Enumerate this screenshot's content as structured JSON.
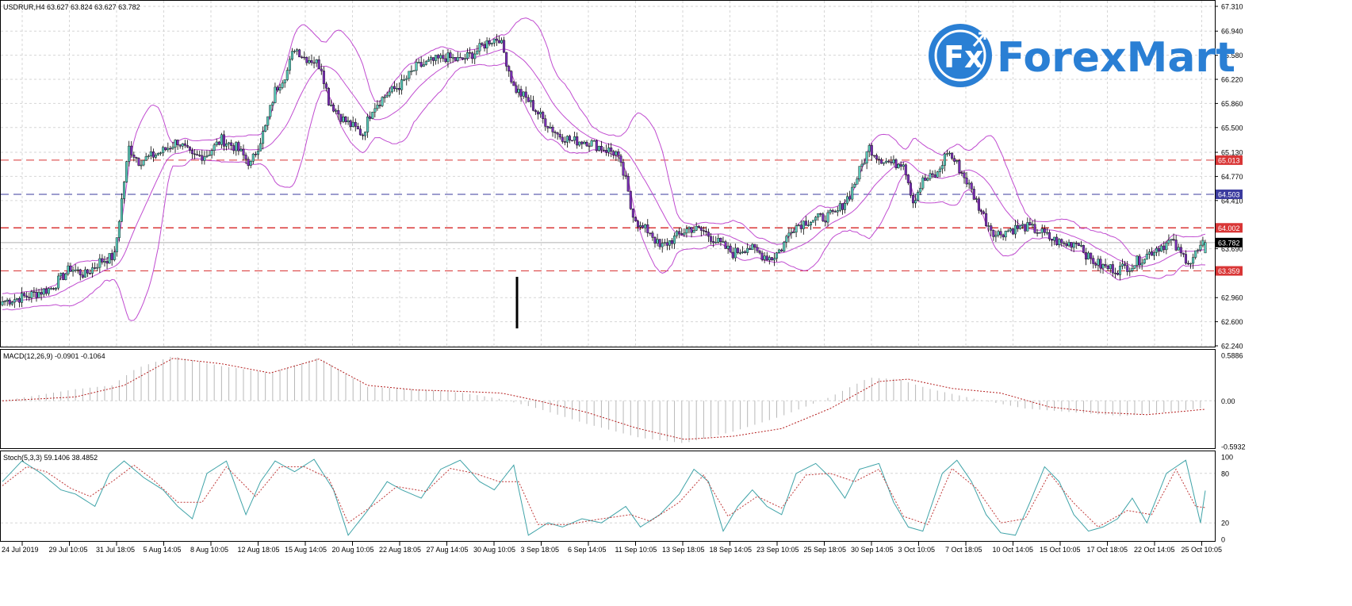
{
  "chart_data": [
    {
      "type": "candlestick",
      "title": "USDRUR,H4 63.627 63.824 63.627 63.782",
      "symbol": "USDRUR",
      "timeframe": "H4",
      "ohlc_last": {
        "open": 63.627,
        "high": 63.824,
        "low": 63.627,
        "close": 63.782
      },
      "ylim": [
        62.24,
        67.31
      ],
      "y_ticks": [
        "67.310",
        "66.940",
        "66.580",
        "66.220",
        "65.860",
        "65.500",
        "65.130",
        "64.770",
        "64.410",
        "63.690",
        "62.960",
        "62.600",
        "62.240"
      ],
      "x_ticks": [
        "24 Jul 2019",
        "29 Jul 10:05",
        "31 Jul 18:05",
        "5 Aug 14:05",
        "8 Aug 10:05",
        "12 Aug 18:05",
        "15 Aug 14:05",
        "20 Aug 10:05",
        "22 Aug 18:05",
        "27 Aug 14:05",
        "30 Aug 10:05",
        "3 Sep 18:05",
        "6 Sep 14:05",
        "11 Sep 10:05",
        "13 Sep 18:05",
        "18 Sep 14:05",
        "23 Sep 10:05",
        "25 Sep 18:05",
        "30 Sep 14:05",
        "3 Oct 10:05",
        "7 Oct 18:05",
        "10 Oct 14:05",
        "15 Oct 10:05",
        "17 Oct 18:05",
        "22 Oct 14:05",
        "25 Oct 10:05"
      ],
      "levels": [
        {
          "label": "65.013",
          "value": 65.013,
          "color": "#d93636"
        },
        {
          "label": "64.503",
          "value": 64.503,
          "color": "#3b3b9e"
        },
        {
          "label": "64.002",
          "value": 64.002,
          "color": "#d93636"
        },
        {
          "label": "63.782",
          "value": 63.782,
          "color": "#000000"
        },
        {
          "label": "63.359",
          "value": 63.359,
          "color": "#d93636"
        }
      ],
      "colors": {
        "bull": "#58c9b9",
        "bear": "#7b2fb8",
        "bands": "#c04bd0"
      },
      "close_path": [
        [
          0,
          62.9
        ],
        [
          10,
          62.98
        ],
        [
          20,
          63.1
        ],
        [
          28,
          63.4
        ],
        [
          34,
          63.3
        ],
        [
          40,
          63.5
        ],
        [
          46,
          63.58
        ],
        [
          50,
          64.7
        ],
        [
          52,
          65.2
        ],
        [
          56,
          65.0
        ],
        [
          60,
          65.05
        ],
        [
          66,
          65.15
        ],
        [
          72,
          65.3
        ],
        [
          78,
          65.05
        ],
        [
          84,
          65.1
        ],
        [
          90,
          65.32
        ],
        [
          96,
          65.2
        ],
        [
          102,
          64.95
        ],
        [
          108,
          65.5
        ],
        [
          112,
          66.05
        ],
        [
          117,
          66.35
        ],
        [
          120,
          66.7
        ],
        [
          124,
          66.55
        ],
        [
          128,
          66.5
        ],
        [
          131,
          66.4
        ],
        [
          134,
          65.9
        ],
        [
          140,
          65.62
        ],
        [
          148,
          65.4
        ],
        [
          152,
          65.8
        ],
        [
          158,
          66.0
        ],
        [
          164,
          66.15
        ],
        [
          170,
          66.4
        ],
        [
          176,
          66.48
        ],
        [
          182,
          66.55
        ],
        [
          188,
          66.5
        ],
        [
          194,
          66.62
        ],
        [
          200,
          66.8
        ],
        [
          204,
          66.84
        ],
        [
          206,
          66.62
        ],
        [
          210,
          66.1
        ],
        [
          216,
          65.9
        ],
        [
          222,
          65.62
        ],
        [
          228,
          65.4
        ],
        [
          234,
          65.3
        ],
        [
          240,
          65.3
        ],
        [
          246,
          65.2
        ],
        [
          252,
          65.12
        ],
        [
          256,
          64.7
        ],
        [
          258,
          64.3
        ],
        [
          262,
          64.0
        ],
        [
          266,
          63.95
        ],
        [
          270,
          63.7
        ],
        [
          276,
          63.85
        ],
        [
          282,
          64.0
        ],
        [
          288,
          63.95
        ],
        [
          294,
          63.78
        ],
        [
          300,
          63.62
        ],
        [
          306,
          63.72
        ],
        [
          312,
          63.6
        ],
        [
          316,
          63.55
        ],
        [
          320,
          63.7
        ],
        [
          324,
          64.0
        ],
        [
          330,
          64.1
        ],
        [
          336,
          64.15
        ],
        [
          342,
          64.2
        ],
        [
          348,
          64.5
        ],
        [
          352,
          64.85
        ],
        [
          356,
          65.2
        ],
        [
          360,
          65.05
        ],
        [
          366,
          64.95
        ],
        [
          370,
          65.0
        ],
        [
          374,
          64.4
        ],
        [
          378,
          64.7
        ],
        [
          384,
          64.8
        ],
        [
          388,
          65.15
        ],
        [
          392,
          64.95
        ],
        [
          396,
          64.7
        ],
        [
          400,
          64.4
        ],
        [
          404,
          64.1
        ],
        [
          408,
          63.9
        ],
        [
          414,
          63.98
        ],
        [
          420,
          64.02
        ],
        [
          426,
          63.95
        ],
        [
          430,
          63.85
        ],
        [
          436,
          63.75
        ],
        [
          442,
          63.8
        ],
        [
          446,
          63.55
        ],
        [
          452,
          63.42
        ],
        [
          458,
          63.38
        ],
        [
          464,
          63.45
        ],
        [
          468,
          63.55
        ],
        [
          474,
          63.7
        ],
        [
          480,
          63.8
        ],
        [
          484,
          63.6
        ],
        [
          488,
          63.5
        ],
        [
          490,
          63.62
        ],
        [
          494,
          63.78
        ]
      ]
    },
    {
      "type": "bar",
      "title": "MACD(12,26,9) -0.0901 -0.1064",
      "indicator": "MACD",
      "params": [
        12,
        26,
        9
      ],
      "values_last": [
        -0.0901,
        -0.1064
      ],
      "ylim": [
        -0.5932,
        0.5886
      ],
      "y_ticks": [
        "0.5886",
        "0.00",
        "-0.5932"
      ],
      "colors": {
        "histogram": "#b8b8b8",
        "signal": "#b52020"
      },
      "histogram_path": [
        [
          0,
          0.0
        ],
        [
          30,
          0.15
        ],
        [
          45,
          0.2
        ],
        [
          55,
          0.42
        ],
        [
          70,
          0.58
        ],
        [
          90,
          0.45
        ],
        [
          110,
          0.36
        ],
        [
          130,
          0.56
        ],
        [
          150,
          0.18
        ],
        [
          170,
          0.15
        ],
        [
          190,
          0.1
        ],
        [
          205,
          0.02
        ],
        [
          220,
          -0.1
        ],
        [
          240,
          -0.3
        ],
        [
          262,
          -0.48
        ],
        [
          280,
          -0.55
        ],
        [
          300,
          -0.4
        ],
        [
          320,
          -0.2
        ],
        [
          340,
          0.05
        ],
        [
          356,
          0.3
        ],
        [
          368,
          0.28
        ],
        [
          380,
          0.16
        ],
        [
          400,
          0.02
        ],
        [
          420,
          -0.1
        ],
        [
          440,
          -0.15
        ],
        [
          460,
          -0.2
        ],
        [
          480,
          -0.14
        ],
        [
          494,
          -0.09
        ]
      ],
      "signal_path": [
        [
          0,
          0.0
        ],
        [
          30,
          0.05
        ],
        [
          50,
          0.2
        ],
        [
          70,
          0.55
        ],
        [
          90,
          0.48
        ],
        [
          110,
          0.36
        ],
        [
          130,
          0.54
        ],
        [
          150,
          0.2
        ],
        [
          170,
          0.14
        ],
        [
          190,
          0.12
        ],
        [
          205,
          0.1
        ],
        [
          220,
          0.0
        ],
        [
          240,
          -0.15
        ],
        [
          260,
          -0.35
        ],
        [
          280,
          -0.5
        ],
        [
          300,
          -0.46
        ],
        [
          320,
          -0.36
        ],
        [
          340,
          -0.1
        ],
        [
          360,
          0.25
        ],
        [
          372,
          0.28
        ],
        [
          390,
          0.16
        ],
        [
          410,
          0.1
        ],
        [
          430,
          -0.08
        ],
        [
          450,
          -0.15
        ],
        [
          470,
          -0.18
        ],
        [
          494,
          -0.11
        ]
      ]
    },
    {
      "type": "line",
      "title": "Stoch(5,3,3) 59.1406 38.4852",
      "indicator": "Stochastic",
      "params": [
        5,
        3,
        3
      ],
      "values_last": [
        59.1406,
        38.4852
      ],
      "ylim": [
        0,
        100
      ],
      "y_ticks": [
        "100",
        "80",
        "20",
        "0"
      ],
      "colors": {
        "main": "#3fa3a8",
        "signal": "#c03a3a"
      },
      "main_path": [
        [
          0,
          70
        ],
        [
          8,
          95
        ],
        [
          16,
          80
        ],
        [
          24,
          60
        ],
        [
          30,
          55
        ],
        [
          38,
          40
        ],
        [
          44,
          80
        ],
        [
          50,
          95
        ],
        [
          58,
          75
        ],
        [
          66,
          60
        ],
        [
          72,
          40
        ],
        [
          78,
          25
        ],
        [
          84,
          80
        ],
        [
          92,
          95
        ],
        [
          100,
          30
        ],
        [
          106,
          70
        ],
        [
          112,
          95
        ],
        [
          120,
          82
        ],
        [
          128,
          97
        ],
        [
          136,
          60
        ],
        [
          142,
          5
        ],
        [
          150,
          35
        ],
        [
          158,
          70
        ],
        [
          164,
          60
        ],
        [
          172,
          50
        ],
        [
          180,
          85
        ],
        [
          188,
          96
        ],
        [
          196,
          70
        ],
        [
          202,
          60
        ],
        [
          210,
          90
        ],
        [
          216,
          5
        ],
        [
          224,
          20
        ],
        [
          230,
          15
        ],
        [
          238,
          25
        ],
        [
          246,
          20
        ],
        [
          256,
          40
        ],
        [
          262,
          15
        ],
        [
          270,
          30
        ],
        [
          278,
          55
        ],
        [
          284,
          85
        ],
        [
          290,
          70
        ],
        [
          296,
          10
        ],
        [
          302,
          40
        ],
        [
          308,
          60
        ],
        [
          314,
          40
        ],
        [
          320,
          30
        ],
        [
          326,
          80
        ],
        [
          334,
          92
        ],
        [
          340,
          75
        ],
        [
          346,
          50
        ],
        [
          352,
          85
        ],
        [
          360,
          92
        ],
        [
          366,
          45
        ],
        [
          372,
          15
        ],
        [
          378,
          10
        ],
        [
          386,
          80
        ],
        [
          392,
          96
        ],
        [
          398,
          70
        ],
        [
          404,
          30
        ],
        [
          410,
          8
        ],
        [
          416,
          5
        ],
        [
          422,
          45
        ],
        [
          428,
          88
        ],
        [
          434,
          70
        ],
        [
          440,
          30
        ],
        [
          446,
          10
        ],
        [
          452,
          15
        ],
        [
          458,
          25
        ],
        [
          464,
          50
        ],
        [
          470,
          20
        ],
        [
          478,
          80
        ],
        [
          486,
          96
        ],
        [
          492,
          20
        ],
        [
          498,
          40
        ],
        [
          494,
          59.14
        ]
      ],
      "signal_path": [
        [
          0,
          65
        ],
        [
          10,
          88
        ],
        [
          18,
          82
        ],
        [
          28,
          62
        ],
        [
          36,
          52
        ],
        [
          46,
          72
        ],
        [
          54,
          90
        ],
        [
          62,
          72
        ],
        [
          72,
          45
        ],
        [
          82,
          45
        ],
        [
          92,
          88
        ],
        [
          104,
          52
        ],
        [
          114,
          88
        ],
        [
          124,
          88
        ],
        [
          134,
          74
        ],
        [
          142,
          20
        ],
        [
          154,
          45
        ],
        [
          162,
          64
        ],
        [
          174,
          58
        ],
        [
          184,
          86
        ],
        [
          194,
          80
        ],
        [
          204,
          70
        ],
        [
          212,
          70
        ],
        [
          220,
          18
        ],
        [
          232,
          18
        ],
        [
          244,
          24
        ],
        [
          258,
          30
        ],
        [
          266,
          22
        ],
        [
          278,
          45
        ],
        [
          288,
          78
        ],
        [
          298,
          28
        ],
        [
          310,
          52
        ],
        [
          320,
          38
        ],
        [
          330,
          78
        ],
        [
          340,
          80
        ],
        [
          350,
          70
        ],
        [
          360,
          85
        ],
        [
          370,
          28
        ],
        [
          380,
          18
        ],
        [
          390,
          86
        ],
        [
          400,
          62
        ],
        [
          410,
          20
        ],
        [
          420,
          25
        ],
        [
          430,
          80
        ],
        [
          440,
          44
        ],
        [
          450,
          15
        ],
        [
          462,
          35
        ],
        [
          472,
          30
        ],
        [
          482,
          85
        ],
        [
          490,
          40
        ],
        [
          494,
          38.49
        ]
      ]
    }
  ],
  "brand": {
    "mark": "Fx",
    "name": "ForexMart",
    "color": "#2a7fd4"
  }
}
